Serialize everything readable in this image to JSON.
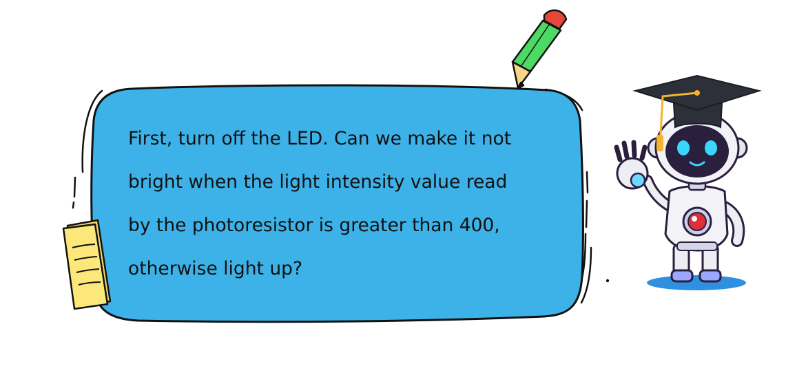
{
  "message": {
    "lines": [
      "First, turn off the LED. Can we make it not",
      "bright when the light intensity value read",
      "by the photoresistor is greater than 400,",
      "otherwise light up?"
    ]
  },
  "colors": {
    "bubble_fill": "#3db2e8",
    "outline": "#111111",
    "pencil_body": "#4cd964",
    "pencil_eraser": "#e8463a",
    "pencil_tip": "#f5d58a",
    "note_paper": "#fbe77a",
    "robot_body": "#f2f2f7",
    "robot_face": "#2a1f3d",
    "robot_eyes": "#38d7ff",
    "robot_core": "#e02f3a",
    "cap": "#2d3039",
    "tassel": "#f4b52a",
    "shadow": "#2f8fe0"
  },
  "icons": [
    "pencil-icon",
    "sticky-note-icon",
    "robot-mascot-icon",
    "graduation-cap-icon"
  ]
}
